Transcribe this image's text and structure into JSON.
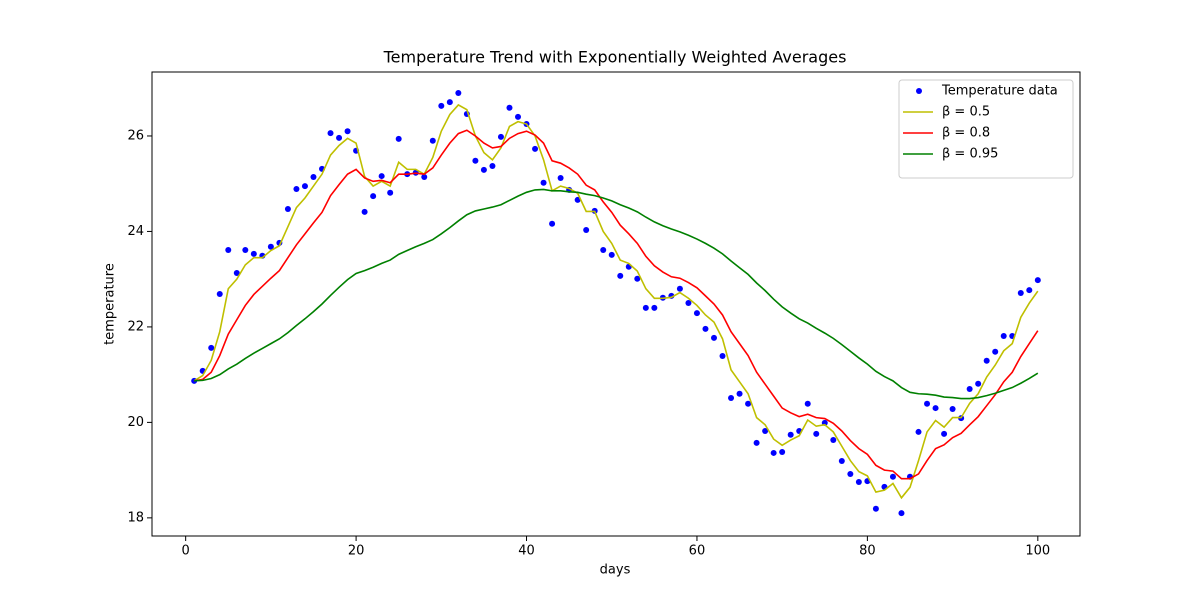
{
  "chart_data": {
    "type": "line",
    "title": "Temperature Trend with Exponentially Weighted Averages",
    "x_label": "days",
    "y_label": "temperature",
    "x": [
      1,
      2,
      3,
      4,
      5,
      6,
      7,
      8,
      9,
      10,
      11,
      12,
      13,
      14,
      15,
      16,
      17,
      18,
      19,
      20,
      21,
      22,
      23,
      24,
      25,
      26,
      27,
      28,
      29,
      30,
      31,
      32,
      33,
      34,
      35,
      36,
      37,
      38,
      39,
      40,
      41,
      42,
      43,
      44,
      45,
      46,
      47,
      48,
      49,
      50,
      51,
      52,
      53,
      54,
      55,
      56,
      57,
      58,
      59,
      60,
      61,
      62,
      63,
      64,
      65,
      66,
      67,
      68,
      69,
      70,
      71,
      72,
      73,
      74,
      75,
      76,
      77,
      78,
      79,
      80,
      81,
      82,
      83,
      84,
      85,
      86,
      87,
      88,
      89,
      90,
      91,
      92,
      93,
      94,
      95,
      96,
      97,
      98,
      99,
      100
    ],
    "series": [
      {
        "name": "Temperature data",
        "type": "scatter",
        "color": "#0000ff",
        "values": [
          20.87,
          21.08,
          21.56,
          22.69,
          23.61,
          23.13,
          23.61,
          23.53,
          23.49,
          23.68,
          23.76,
          24.47,
          24.89,
          24.95,
          25.14,
          25.31,
          26.06,
          25.96,
          26.1,
          25.69,
          24.41,
          24.74,
          25.16,
          24.81,
          25.94,
          25.2,
          25.23,
          25.14,
          25.9,
          26.63,
          26.71,
          26.9,
          26.46,
          25.48,
          25.29,
          25.37,
          25.98,
          26.59,
          26.4,
          26.25,
          25.73,
          25.02,
          24.16,
          25.12,
          24.87,
          24.66,
          24.03,
          24.43,
          23.61,
          23.51,
          23.07,
          23.26,
          23.01,
          22.4,
          22.4,
          22.61,
          22.65,
          22.8,
          22.5,
          22.29,
          21.96,
          21.77,
          21.39,
          20.51,
          20.6,
          20.39,
          19.57,
          19.82,
          19.36,
          19.38,
          19.74,
          19.82,
          20.39,
          19.76,
          19.99,
          19.63,
          19.19,
          18.92,
          18.75,
          18.77,
          18.19,
          18.65,
          18.86,
          18.1,
          18.86,
          19.8,
          20.39,
          20.3,
          19.76,
          20.28,
          20.09,
          20.7,
          20.81,
          21.29,
          21.48,
          21.81,
          21.81,
          22.71,
          22.77,
          22.98
        ]
      },
      {
        "name": "β = 0.5",
        "type": "line",
        "color": "#bfbf00",
        "values": [
          20.87,
          20.98,
          21.3,
          21.9,
          22.8,
          23.0,
          23.3,
          23.45,
          23.45,
          23.6,
          23.7,
          24.1,
          24.5,
          24.7,
          24.95,
          25.2,
          25.6,
          25.8,
          25.95,
          25.85,
          25.15,
          24.95,
          25.05,
          24.95,
          25.45,
          25.3,
          25.3,
          25.2,
          25.55,
          26.1,
          26.45,
          26.65,
          26.55,
          26.0,
          25.65,
          25.5,
          25.75,
          26.2,
          26.3,
          26.25,
          26.0,
          25.5,
          24.85,
          24.95,
          24.9,
          24.8,
          24.42,
          24.42,
          24.0,
          23.75,
          23.4,
          23.33,
          23.17,
          22.8,
          22.6,
          22.6,
          22.62,
          22.72,
          22.6,
          22.45,
          22.25,
          22.1,
          21.75,
          21.1,
          20.85,
          20.6,
          20.1,
          19.95,
          19.65,
          19.52,
          19.63,
          19.72,
          20.05,
          19.92,
          19.95,
          19.8,
          19.5,
          19.2,
          18.97,
          18.88,
          18.54,
          18.58,
          18.72,
          18.42,
          18.64,
          19.2,
          19.8,
          20.04,
          19.9,
          20.1,
          20.1,
          20.4,
          20.6,
          20.95,
          21.2,
          21.5,
          21.65,
          22.2,
          22.5,
          22.75
        ]
      },
      {
        "name": "β = 0.8",
        "type": "line",
        "color": "#ff0000",
        "values": [
          20.87,
          20.9,
          21.05,
          21.4,
          21.85,
          22.15,
          22.45,
          22.68,
          22.85,
          23.02,
          23.18,
          23.45,
          23.72,
          23.95,
          24.18,
          24.4,
          24.75,
          24.98,
          25.2,
          25.3,
          25.12,
          25.05,
          25.07,
          25.02,
          25.2,
          25.2,
          25.22,
          25.2,
          25.33,
          25.6,
          25.85,
          26.05,
          26.12,
          26.0,
          25.85,
          25.75,
          25.78,
          25.95,
          26.05,
          26.1,
          26.02,
          25.85,
          25.48,
          25.43,
          25.33,
          25.2,
          24.97,
          24.87,
          24.62,
          24.4,
          24.13,
          23.95,
          23.75,
          23.48,
          23.28,
          23.15,
          23.05,
          23.02,
          22.93,
          22.82,
          22.65,
          22.48,
          22.25,
          21.9,
          21.65,
          21.4,
          21.05,
          20.8,
          20.55,
          20.3,
          20.2,
          20.12,
          20.17,
          20.1,
          20.08,
          19.98,
          19.82,
          19.62,
          19.45,
          19.33,
          19.1,
          19.0,
          18.98,
          18.82,
          18.82,
          18.92,
          19.2,
          19.45,
          19.53,
          19.68,
          19.77,
          19.95,
          20.12,
          20.35,
          20.58,
          20.85,
          21.05,
          21.38,
          21.65,
          21.92
        ]
      },
      {
        "name": "β = 0.95",
        "type": "line",
        "color": "#008000",
        "values": [
          20.87,
          20.88,
          20.92,
          21.0,
          21.12,
          21.22,
          21.34,
          21.45,
          21.55,
          21.65,
          21.75,
          21.88,
          22.03,
          22.17,
          22.32,
          22.48,
          22.66,
          22.83,
          22.99,
          23.12,
          23.18,
          23.25,
          23.33,
          23.4,
          23.52,
          23.6,
          23.68,
          23.75,
          23.83,
          23.95,
          24.08,
          24.22,
          24.35,
          24.43,
          24.47,
          24.51,
          24.56,
          24.65,
          24.74,
          24.82,
          24.87,
          24.88,
          24.85,
          24.85,
          24.83,
          24.82,
          24.78,
          24.75,
          24.7,
          24.64,
          24.56,
          24.49,
          24.41,
          24.3,
          24.2,
          24.12,
          24.05,
          23.99,
          23.92,
          23.84,
          23.75,
          23.65,
          23.53,
          23.38,
          23.24,
          23.1,
          22.92,
          22.76,
          22.58,
          22.42,
          22.29,
          22.17,
          22.08,
          21.97,
          21.87,
          21.76,
          21.63,
          21.49,
          21.35,
          21.22,
          21.07,
          20.96,
          20.87,
          20.73,
          20.63,
          20.6,
          20.59,
          20.57,
          20.53,
          20.52,
          20.5,
          20.5,
          20.52,
          20.56,
          20.61,
          20.67,
          20.73,
          20.82,
          20.92,
          21.03
        ]
      }
    ],
    "xlim": [
      -3.95,
      104.95
    ],
    "xticks": [
      0,
      20,
      40,
      60,
      80,
      100
    ],
    "ylim": [
      17.62,
      27.34
    ],
    "yticks": [
      18,
      20,
      22,
      24,
      26
    ],
    "grid": false,
    "legend": "upper right"
  }
}
